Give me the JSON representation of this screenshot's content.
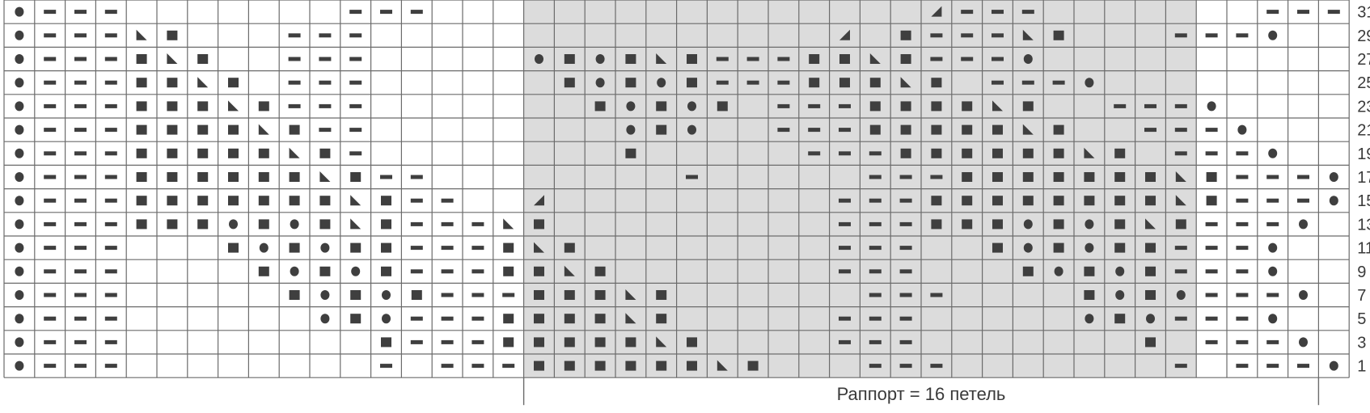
{
  "chart_data": {
    "type": "knitting-chart",
    "columns": 44,
    "rows_shown": 16,
    "row_numbers": [
      31,
      29,
      27,
      25,
      23,
      21,
      19,
      17,
      15,
      13,
      11,
      9,
      7,
      5,
      3,
      1
    ],
    "grid_rows": [
      "O---...:...---...............:D---...:...---O",
      "O---\\#...---...............D:#---\\#...---O",
      "O---#\\#..---.....O#O#\\#---##\\#---O",
      "O---##\\#.---......#O#O#---###\\#.---O",
      "O---###\\#---.......#O#O#.---####\\#..---O",
      "O---####\\#--........O#O..---#####\\#..---O",
      "O---#####\\#-........#.....---######\\#.---O",
      "O---######\\#--........-.....---#######\\#---O",
      "O---#######\\#--.:D.........---########\\#---O",
      "O---###O#O#\\#---\\#.........---###O#O#\\#---O",
      "O---...#O#O##---#\\#........---..#O#O##---O",
      "O---....#O#O#---##\\#.......---...#O#O#---O",
      "O---.....#O#O#---###\\#......---....#O#O---O",
      "O---......O#O---####\\#.....---.....O#O---O",
      "O---........#---#####\\#....---.......#.---O",
      "O---........-.---######\\#...---.......-.---O"
    ],
    "shaded_columns": [
      17,
      38
    ],
    "rapport_label": "Раппорт = 16 петель",
    "rapport_columns": [
      17,
      43
    ],
    "symbols": {
      "O": "edge-stitch",
      "-": "purl",
      "#": "knit",
      "o": "yarn-over",
      "\\": "left-leaning-decrease",
      "D": "right-leaning-decrease",
      ".": "empty"
    },
    "colors": {
      "grid_line": "#6b6b6b",
      "shade": "#dcdcdc",
      "symbol": "#3f3f3f",
      "background": "#ffffff"
    }
  }
}
